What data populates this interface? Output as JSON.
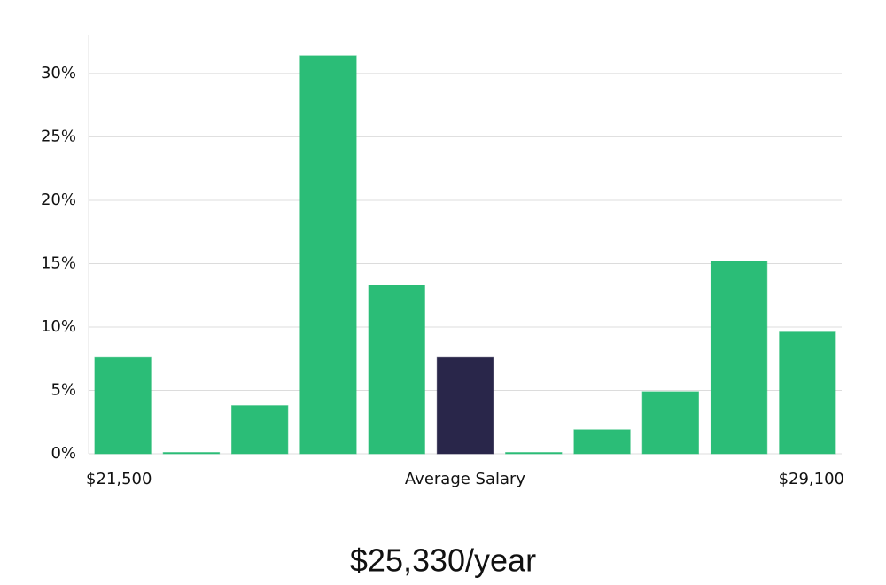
{
  "chart_data": {
    "type": "bar",
    "categories": [
      "$21,500",
      null,
      null,
      null,
      null,
      "Average Salary",
      null,
      null,
      null,
      null,
      "$29,100"
    ],
    "values": [
      7.6,
      0.1,
      3.8,
      31.4,
      13.3,
      7.6,
      0.1,
      1.9,
      4.9,
      15.2,
      9.6
    ],
    "colors": [
      "#2bbd77",
      "#2bbd77",
      "#2bbd77",
      "#2bbd77",
      "#2bbd77",
      "#29264a",
      "#2bbd77",
      "#2bbd77",
      "#2bbd77",
      "#2bbd77",
      "#2bbd77"
    ],
    "ylim": [
      0,
      33
    ],
    "yticks": [
      {
        "value": 0,
        "label": "0%"
      },
      {
        "value": 5,
        "label": "5%"
      },
      {
        "value": 10,
        "label": "10%"
      },
      {
        "value": 15,
        "label": "15%"
      },
      {
        "value": 20,
        "label": "20%"
      },
      {
        "value": 25,
        "label": "25%"
      },
      {
        "value": 30,
        "label": "30%"
      }
    ],
    "grid": true,
    "summary": "$25,330/year"
  }
}
